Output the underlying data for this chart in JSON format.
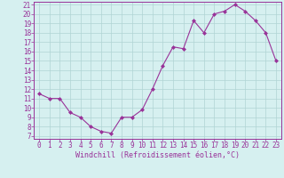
{
  "x": [
    0,
    1,
    2,
    3,
    4,
    5,
    6,
    7,
    8,
    9,
    10,
    11,
    12,
    13,
    14,
    15,
    16,
    17,
    18,
    19,
    20,
    21,
    22,
    23
  ],
  "y": [
    11.5,
    11,
    11,
    9.5,
    9,
    8,
    7.5,
    7.3,
    9,
    9,
    9.8,
    12,
    14.5,
    16.5,
    16.3,
    19.3,
    18,
    20,
    20.3,
    21,
    20.3,
    19.3,
    18,
    15
  ],
  "line_color": "#993399",
  "marker": "D",
  "marker_size": 2,
  "lw": 0.8,
  "bg_color": "#d6f0f0",
  "grid_color": "#b0d4d4",
  "xlabel": "Windchill (Refroidissement éolien,°C)",
  "ylim": [
    7,
    21
  ],
  "xlim": [
    -0.5,
    23.5
  ],
  "yticks": [
    7,
    8,
    9,
    10,
    11,
    12,
    13,
    14,
    15,
    16,
    17,
    18,
    19,
    20,
    21
  ],
  "xticks": [
    0,
    1,
    2,
    3,
    4,
    5,
    6,
    7,
    8,
    9,
    10,
    11,
    12,
    13,
    14,
    15,
    16,
    17,
    18,
    19,
    20,
    21,
    22,
    23
  ],
  "xlabel_fontsize": 6,
  "tick_fontsize": 5.5,
  "tick_color": "#993399",
  "spine_color": "#993399"
}
